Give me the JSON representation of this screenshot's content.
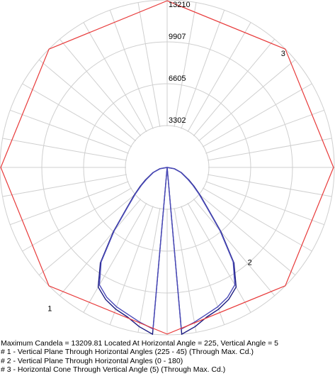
{
  "chart_data": {
    "type": "polar",
    "r_max": 13210,
    "r_ticks": [
      3302,
      6605,
      9907,
      13210
    ],
    "r_tick_labels": [
      "3302",
      "6605",
      "9907",
      "13210"
    ],
    "angular_spokes_deg": 10,
    "grid": true,
    "series": [
      {
        "label": "1",
        "color": "#1a1a80",
        "points": [
          {
            "angle": 0,
            "value": 0
          },
          {
            "angle": 5,
            "value": 13210
          },
          {
            "angle": 10,
            "value": 12750
          },
          {
            "angle": 15,
            "value": 12200
          },
          {
            "angle": 20,
            "value": 11900
          },
          {
            "angle": 25,
            "value": 11500
          },
          {
            "angle": 30,
            "value": 10900
          },
          {
            "angle": 35,
            "value": 9200
          },
          {
            "angle": 40,
            "value": 6600
          },
          {
            "angle": 45,
            "value": 4500
          },
          {
            "angle": 50,
            "value": 3400
          },
          {
            "angle": 55,
            "value": 2600
          },
          {
            "angle": 60,
            "value": 2000
          },
          {
            "angle": 70,
            "value": 1200
          },
          {
            "angle": 80,
            "value": 600
          },
          {
            "angle": 90,
            "value": 0
          }
        ]
      },
      {
        "label": "2",
        "color": "#4a4ab8",
        "points": [
          {
            "angle": 0,
            "value": 0
          },
          {
            "angle": 5,
            "value": 12800
          },
          {
            "angle": 10,
            "value": 12400
          },
          {
            "angle": 15,
            "value": 12000
          },
          {
            "angle": 20,
            "value": 11700
          },
          {
            "angle": 25,
            "value": 11300
          },
          {
            "angle": 30,
            "value": 10700
          },
          {
            "angle": 35,
            "value": 9100
          },
          {
            "angle": 40,
            "value": 6500
          },
          {
            "angle": 45,
            "value": 4400
          },
          {
            "angle": 50,
            "value": 3300
          },
          {
            "angle": 55,
            "value": 2500
          },
          {
            "angle": 60,
            "value": 1900
          },
          {
            "angle": 70,
            "value": 1150
          },
          {
            "angle": 80,
            "value": 550
          },
          {
            "angle": 90,
            "value": 0
          }
        ]
      },
      {
        "label": "3",
        "color": "#e83a3a",
        "vertical_angle": 5,
        "points": [
          {
            "horizontal_angle": 0,
            "value": 13150
          },
          {
            "horizontal_angle": 45,
            "value": 13200
          },
          {
            "horizontal_angle": 90,
            "value": 13150
          },
          {
            "horizontal_angle": 135,
            "value": 13200
          },
          {
            "horizontal_angle": 180,
            "value": 13150
          },
          {
            "horizontal_angle": 225,
            "value": 13210
          },
          {
            "horizontal_angle": 270,
            "value": 13150
          },
          {
            "horizontal_angle": 315,
            "value": 13200
          }
        ]
      }
    ]
  },
  "caption": {
    "max_candela": "Maximum Candela = 13209.81   Located At Horizontal Angle = 225, Vertical Angle = 5",
    "legend_1": "# 1 - Vertical Plane Through Horizontal Angles (225 - 45) (Through Max. Cd.)",
    "legend_2": "# 2 - Vertical Plane Through Horizontal Angles (0 - 180)",
    "legend_3": "# 3 - Horizontal Cone Through Vertical Angle (5) (Through Max. Cd.)"
  },
  "colors": {
    "grid": "#cfcfcf",
    "background": "#ffffff"
  }
}
